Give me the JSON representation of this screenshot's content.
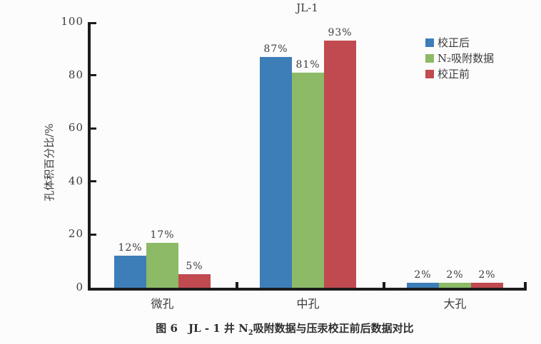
{
  "figure": {
    "caption": {
      "pre": "图 6　JL - 1 井 N",
      "sub": "2",
      "post": "吸附数据与压汞校正前后数据对比"
    }
  },
  "colors": {
    "background": "#fcfcfc",
    "axis": "#1c1c1c",
    "text": "#3b3b3b",
    "series_blue": "#3d7eb8",
    "series_green": "#8cba66",
    "series_red": "#c04a50"
  },
  "chart_data": {
    "type": "bar",
    "title": "JL-1",
    "categories": [
      "微孔",
      "中孔",
      "大孔"
    ],
    "series": [
      {
        "name": "校正后",
        "color": "#3d7eb8",
        "values": [
          12,
          87,
          2
        ]
      },
      {
        "name": "N₂吸附数据",
        "color": "#8cba66",
        "values": [
          17,
          81,
          2
        ]
      },
      {
        "name": "校正前",
        "color": "#c04a50",
        "values": [
          5,
          93,
          2
        ]
      }
    ],
    "value_label_format": "{v}%",
    "xlabel": "",
    "ylabel": "孔体积百分比/%",
    "ylim": [
      0,
      100
    ],
    "yticks": [
      0,
      20,
      40,
      60,
      80,
      100
    ],
    "legend_position": "top-right",
    "grid": false
  }
}
